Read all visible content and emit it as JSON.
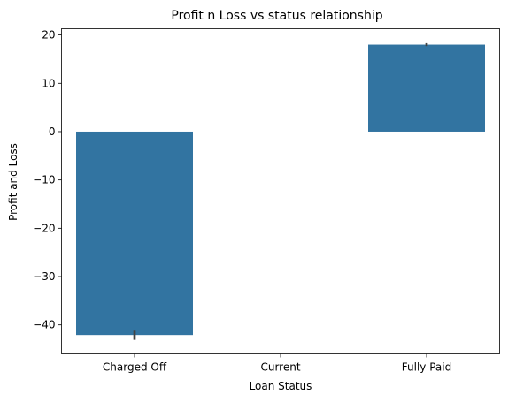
{
  "chart_data": {
    "type": "bar",
    "title": "Profit n Loss vs status relationship",
    "xlabel": "Loan Status",
    "ylabel": "Profit and Loss",
    "categories": [
      "Charged Off",
      "Current",
      "Fully Paid"
    ],
    "values": [
      -42.1,
      null,
      18.0
    ],
    "error_bars": [
      [
        -43.1,
        -41.2
      ],
      null,
      [
        17.7,
        18.3
      ]
    ],
    "ylim": [
      -46,
      21.3
    ],
    "yticks": [
      20,
      10,
      0,
      -10,
      -20,
      -30,
      -40
    ],
    "ytick_labels": [
      "20",
      "10",
      "0",
      "−10",
      "−20",
      "−30",
      "−40"
    ],
    "bar_color": "#3274a1",
    "errorbar_color": "#424242",
    "grid": false,
    "legend": "none"
  }
}
